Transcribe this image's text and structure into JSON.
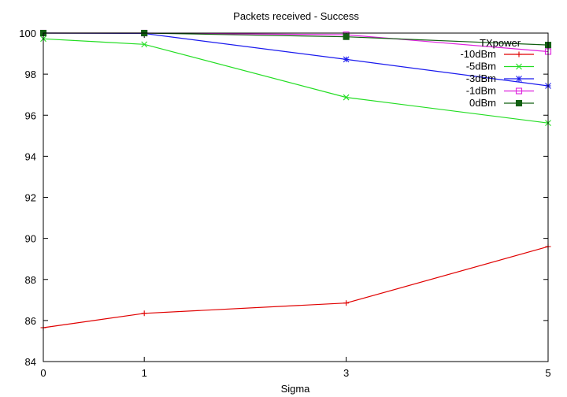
{
  "chart_data": {
    "type": "line",
    "title": "Packets received - Success",
    "xlabel": "Sigma",
    "ylabel": "",
    "x": [
      0,
      1,
      3,
      5
    ],
    "x_ticks": [
      "0",
      "1",
      "3",
      "5"
    ],
    "y_ticks": [
      "84",
      "86",
      "88",
      "90",
      "92",
      "94",
      "96",
      "98",
      "100"
    ],
    "ylim": [
      84,
      100
    ],
    "grid": false,
    "legend": {
      "title": "TXpower",
      "position": "top-right"
    },
    "series": [
      {
        "name": "-10dBm",
        "color": "#e00000",
        "marker": "plus",
        "values": [
          85.65,
          86.35,
          86.85,
          89.6
        ]
      },
      {
        "name": "-5dBm",
        "color": "#22dd22",
        "marker": "cross",
        "values": [
          99.72,
          99.45,
          96.87,
          95.62
        ]
      },
      {
        "name": "-3dBm",
        "color": "#1a1aee",
        "marker": "star",
        "values": [
          100.0,
          99.98,
          98.72,
          97.43
        ]
      },
      {
        "name": "-1dBm",
        "color": "#dd22dd",
        "marker": "open-square",
        "values": [
          100.0,
          100.0,
          99.92,
          99.1
        ]
      },
      {
        "name": "0dBm",
        "color": "#126012",
        "marker": "filled-square",
        "values": [
          100.0,
          100.0,
          99.82,
          99.42
        ]
      }
    ]
  }
}
